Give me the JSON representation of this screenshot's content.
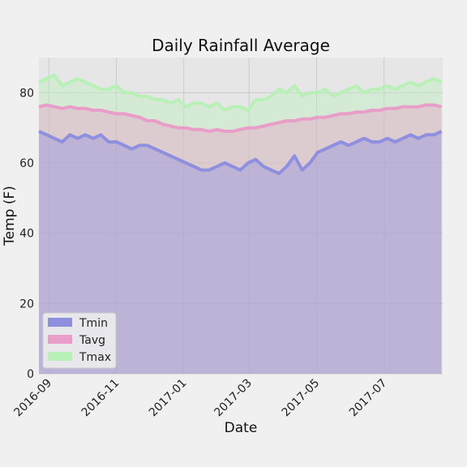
{
  "chart_data": {
    "type": "area",
    "title": "Daily Rainfall Average",
    "xlabel": "Date",
    "ylabel": "Temp (F)",
    "ylim": [
      0,
      90
    ],
    "yticks": [
      0,
      20,
      40,
      60,
      80
    ],
    "xlim": [
      "2016-08-23",
      "2017-08-23"
    ],
    "xticks": [
      "2016-09",
      "2016-11",
      "2017-01",
      "2017-03",
      "2017-05",
      "2017-07"
    ],
    "grid": true,
    "legend_position": "lower-left",
    "x_step_days": 7,
    "x_start_date": "2016-08-23",
    "series": [
      {
        "name": "Tmin",
        "color": "#8f8fe0",
        "values": [
          69,
          68,
          67,
          66,
          68,
          67,
          68,
          67,
          68,
          66,
          66,
          65,
          64,
          65,
          65,
          64,
          63,
          62,
          61,
          60,
          59,
          58,
          58,
          59,
          60,
          59,
          58,
          60,
          61,
          59,
          58,
          57,
          59,
          62,
          58,
          60,
          63,
          64,
          65,
          66,
          65,
          66,
          67,
          66,
          66,
          67,
          66,
          67,
          68,
          67,
          68,
          68,
          69
        ]
      },
      {
        "name": "Tavg",
        "color": "#e89ec8",
        "values": [
          76,
          76.5,
          76,
          75.5,
          76,
          75.5,
          75.5,
          75,
          75,
          74.5,
          74,
          74,
          73.5,
          73,
          72,
          72,
          71,
          70.5,
          70,
          70,
          69.5,
          69.5,
          69,
          69.5,
          69,
          69,
          69.5,
          70,
          70,
          70.5,
          71,
          71.5,
          72,
          72,
          72.5,
          72.5,
          73,
          73,
          73.5,
          74,
          74,
          74.5,
          74.5,
          75,
          75,
          75.5,
          75.5,
          76,
          76,
          76,
          76.5,
          76.5,
          76
        ]
      },
      {
        "name": "Tmax",
        "color": "#b8f0b8",
        "values": [
          83,
          84,
          85,
          82,
          83,
          84,
          83,
          82,
          81,
          81,
          82,
          80,
          80,
          79,
          79,
          78,
          78,
          77,
          78,
          76,
          77,
          77,
          76,
          77,
          75,
          76,
          76,
          75,
          78,
          78,
          79,
          81,
          80,
          82,
          79,
          80,
          80,
          81,
          79,
          80,
          81,
          82,
          80,
          81,
          81,
          82,
          81,
          82,
          83,
          82,
          83,
          84,
          83
        ]
      }
    ]
  }
}
